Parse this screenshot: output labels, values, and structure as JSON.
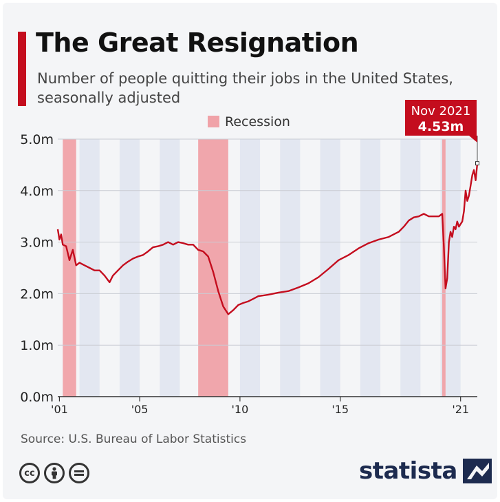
{
  "header": {
    "title": "The Great Resignation",
    "subtitle": "Number of people quitting their jobs in the United States, seasonally adjusted"
  },
  "footer": {
    "source": "Source: U.S. Bureau of Labor Statistics",
    "brand": "statista",
    "license_icons": [
      "cc-icon",
      "attribution-icon",
      "no-derivatives-icon"
    ]
  },
  "colors": {
    "line": "#c40d1e",
    "recession": "#f0a2a8",
    "year_band": "#e3e7f1",
    "accent": "#c40d1e",
    "brand": "#1d2b4f"
  },
  "chart_data": {
    "type": "line",
    "legend": {
      "label": "Recession",
      "placement": "top-center"
    },
    "ylim": [
      0,
      5.0
    ],
    "yticks": [
      {
        "value": 0,
        "label": "0.0m"
      },
      {
        "value": 1,
        "label": "1.0m"
      },
      {
        "value": 2,
        "label": "2.0m"
      },
      {
        "value": 3,
        "label": "3.0m"
      },
      {
        "value": 4,
        "label": "4.0m"
      },
      {
        "value": 5,
        "label": "5.0m"
      }
    ],
    "xlim": [
      "2000-12",
      "2021-11"
    ],
    "xticks": [
      {
        "date": "2001-01",
        "label": "'01"
      },
      {
        "date": "2005-01",
        "label": "'05"
      },
      {
        "date": "2010-01",
        "label": "'10"
      },
      {
        "date": "2015-01",
        "label": "'15"
      },
      {
        "date": "2021-01",
        "label": "'21"
      }
    ],
    "recessions": [
      {
        "start": "2001-03",
        "end": "2001-11"
      },
      {
        "start": "2007-12",
        "end": "2009-06"
      },
      {
        "start": "2020-02",
        "end": "2020-04"
      }
    ],
    "annotation": {
      "date": "2021-11",
      "value": 4.53,
      "line1": "Nov 2021",
      "line2": "4.53m"
    },
    "series": [
      {
        "points": [
          [
            "2000-12",
            3.25
          ],
          [
            "2001-01",
            3.05
          ],
          [
            "2001-02",
            3.15
          ],
          [
            "2001-03",
            2.95
          ],
          [
            "2001-05",
            2.92
          ],
          [
            "2001-07",
            2.65
          ],
          [
            "2001-09",
            2.85
          ],
          [
            "2001-11",
            2.55
          ],
          [
            "2002-01",
            2.6
          ],
          [
            "2002-04",
            2.55
          ],
          [
            "2002-07",
            2.5
          ],
          [
            "2002-10",
            2.45
          ],
          [
            "2003-01",
            2.45
          ],
          [
            "2003-04",
            2.35
          ],
          [
            "2003-07",
            2.22
          ],
          [
            "2003-09",
            2.35
          ],
          [
            "2003-12",
            2.45
          ],
          [
            "2004-03",
            2.55
          ],
          [
            "2004-06",
            2.62
          ],
          [
            "2004-09",
            2.68
          ],
          [
            "2004-12",
            2.72
          ],
          [
            "2005-03",
            2.75
          ],
          [
            "2005-06",
            2.82
          ],
          [
            "2005-09",
            2.9
          ],
          [
            "2005-12",
            2.92
          ],
          [
            "2006-03",
            2.95
          ],
          [
            "2006-06",
            3.0
          ],
          [
            "2006-09",
            2.95
          ],
          [
            "2006-12",
            3.0
          ],
          [
            "2007-03",
            2.98
          ],
          [
            "2007-06",
            2.95
          ],
          [
            "2007-09",
            2.95
          ],
          [
            "2007-12",
            2.85
          ],
          [
            "2008-03",
            2.82
          ],
          [
            "2008-06",
            2.72
          ],
          [
            "2008-09",
            2.42
          ],
          [
            "2008-12",
            2.05
          ],
          [
            "2009-03",
            1.75
          ],
          [
            "2009-06",
            1.6
          ],
          [
            "2009-09",
            1.68
          ],
          [
            "2009-12",
            1.78
          ],
          [
            "2010-03",
            1.82
          ],
          [
            "2010-06",
            1.85
          ],
          [
            "2010-09",
            1.9
          ],
          [
            "2010-12",
            1.95
          ],
          [
            "2011-06",
            1.98
          ],
          [
            "2011-12",
            2.02
          ],
          [
            "2012-06",
            2.05
          ],
          [
            "2012-12",
            2.12
          ],
          [
            "2013-06",
            2.2
          ],
          [
            "2013-12",
            2.32
          ],
          [
            "2014-06",
            2.48
          ],
          [
            "2014-12",
            2.65
          ],
          [
            "2015-06",
            2.75
          ],
          [
            "2015-12",
            2.88
          ],
          [
            "2016-06",
            2.98
          ],
          [
            "2016-12",
            3.05
          ],
          [
            "2017-06",
            3.1
          ],
          [
            "2017-12",
            3.2
          ],
          [
            "2018-03",
            3.3
          ],
          [
            "2018-06",
            3.42
          ],
          [
            "2018-09",
            3.48
          ],
          [
            "2018-12",
            3.5
          ],
          [
            "2019-03",
            3.55
          ],
          [
            "2019-06",
            3.5
          ],
          [
            "2019-09",
            3.5
          ],
          [
            "2019-12",
            3.5
          ],
          [
            "2020-02",
            3.55
          ],
          [
            "2020-03",
            2.9
          ],
          [
            "2020-04",
            2.1
          ],
          [
            "2020-05",
            2.3
          ],
          [
            "2020-06",
            3.0
          ],
          [
            "2020-07",
            3.2
          ],
          [
            "2020-08",
            3.1
          ],
          [
            "2020-09",
            3.3
          ],
          [
            "2020-10",
            3.25
          ],
          [
            "2020-11",
            3.4
          ],
          [
            "2020-12",
            3.3
          ],
          [
            "2021-01",
            3.35
          ],
          [
            "2021-02",
            3.4
          ],
          [
            "2021-03",
            3.6
          ],
          [
            "2021-04",
            4.0
          ],
          [
            "2021-05",
            3.8
          ],
          [
            "2021-06",
            3.9
          ],
          [
            "2021-07",
            4.1
          ],
          [
            "2021-08",
            4.3
          ],
          [
            "2021-09",
            4.4
          ],
          [
            "2021-10",
            4.2
          ],
          [
            "2021-11",
            4.53
          ]
        ]
      }
    ]
  }
}
